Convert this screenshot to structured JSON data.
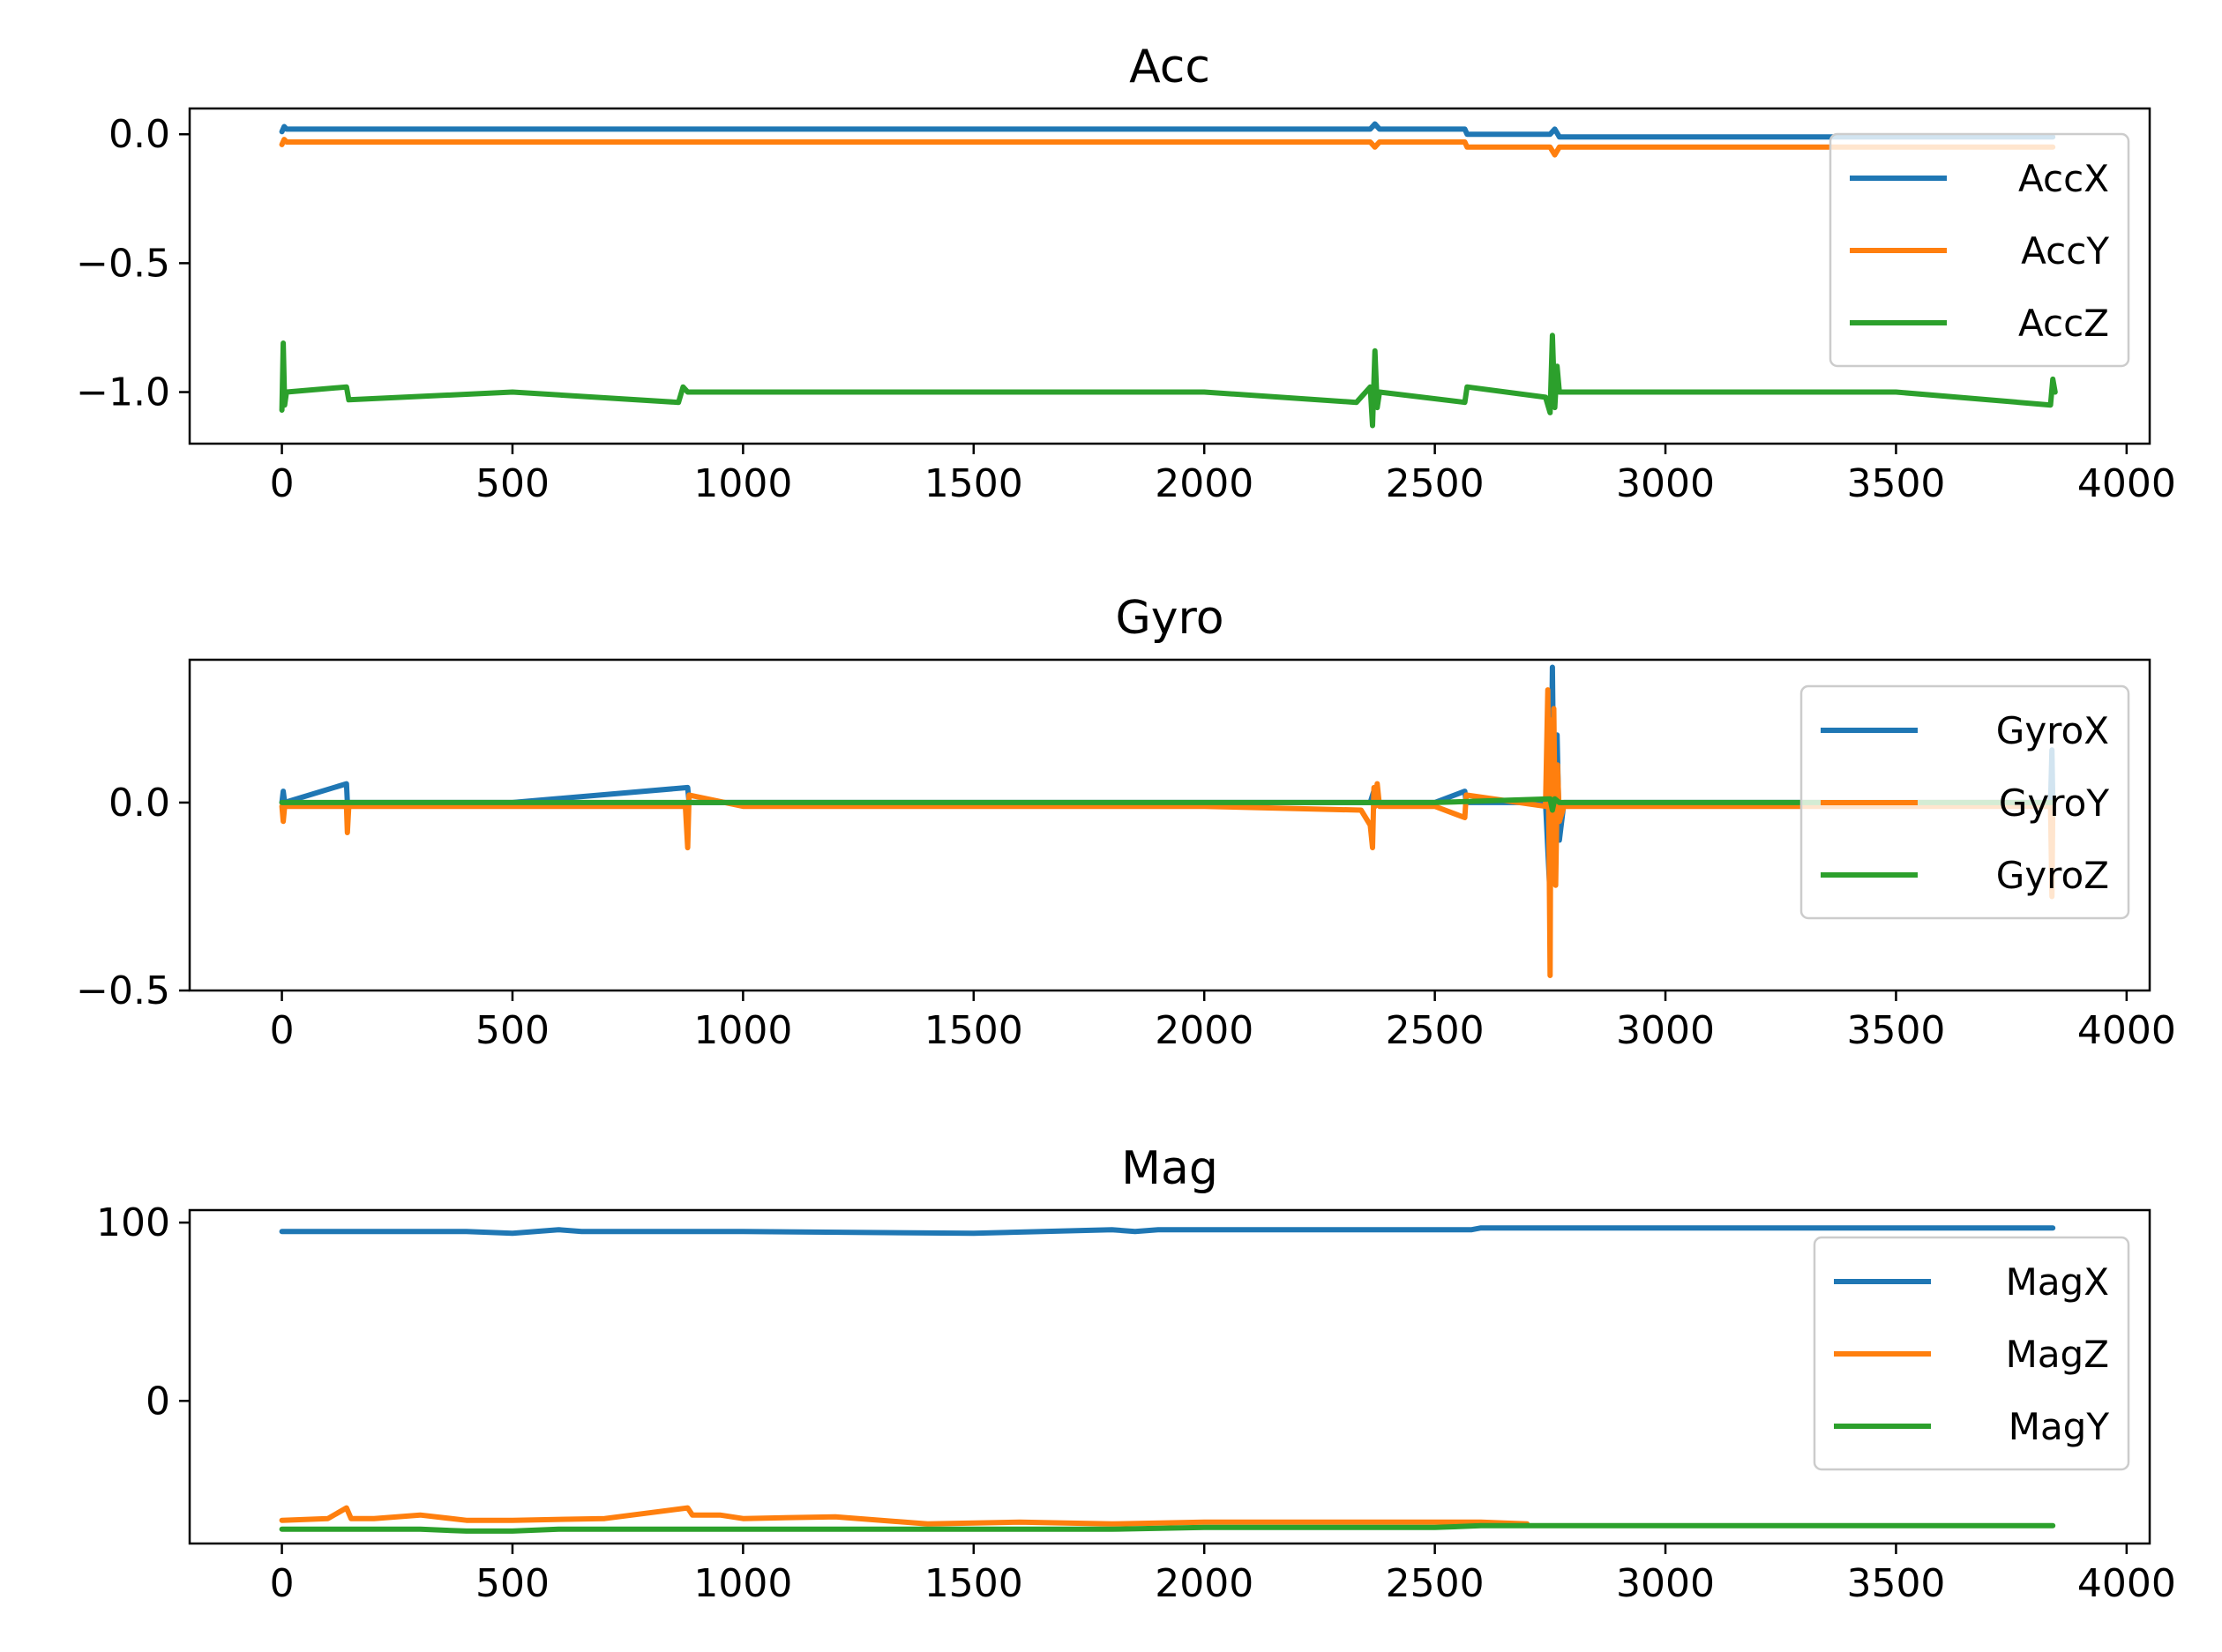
{
  "chart_data": [
    {
      "type": "line",
      "title": "Acc",
      "xlabel": "",
      "ylabel": "",
      "xlim": [
        -200,
        4050
      ],
      "ylim": [
        -1.2,
        0.1
      ],
      "xticks": [
        0,
        500,
        1000,
        1500,
        2000,
        2500,
        3000,
        3500,
        4000
      ],
      "xtick_labels": [
        "0",
        "500",
        "1000",
        "1500",
        "2000",
        "2500",
        "3000",
        "3500",
        "4000"
      ],
      "yticks": [
        0.0,
        -0.5,
        -1.0
      ],
      "ytick_labels": [
        "0.0",
        "−0.5",
        "−1.0"
      ],
      "grid": false,
      "legend": "top-right",
      "series": [
        {
          "name": "AccX",
          "color": "#1f77b4",
          "x": [
            0,
            5,
            10,
            140,
            500,
            860,
            880,
            1000,
            1500,
            2000,
            2360,
            2370,
            2380,
            2565,
            2570,
            2750,
            2760,
            2770,
            3000,
            3500,
            3840
          ],
          "y": [
            0.01,
            0.03,
            0.02,
            0.02,
            0.02,
            0.02,
            0.02,
            0.02,
            0.02,
            0.02,
            0.02,
            0.04,
            0.02,
            0.02,
            0.0,
            0.0,
            0.02,
            -0.01,
            -0.01,
            -0.01,
            -0.01
          ]
        },
        {
          "name": "AccY",
          "color": "#ff7f0e",
          "x": [
            0,
            5,
            10,
            500,
            880,
            1000,
            1500,
            2000,
            2360,
            2370,
            2380,
            2565,
            2570,
            2750,
            2760,
            2770,
            3000,
            3500,
            3840
          ],
          "y": [
            -0.04,
            -0.02,
            -0.03,
            -0.03,
            -0.03,
            -0.03,
            -0.03,
            -0.03,
            -0.03,
            -0.05,
            -0.03,
            -0.03,
            -0.05,
            -0.05,
            -0.08,
            -0.05,
            -0.05,
            -0.05,
            -0.05
          ]
        },
        {
          "name": "AccZ",
          "color": "#2ca02c",
          "x": [
            0,
            3,
            6,
            10,
            140,
            145,
            500,
            860,
            870,
            880,
            1000,
            1500,
            2000,
            2330,
            2360,
            2365,
            2370,
            2375,
            2380,
            2565,
            2570,
            2740,
            2750,
            2755,
            2760,
            2765,
            2770,
            3000,
            3500,
            3835,
            3840,
            3845
          ],
          "y": [
            -1.07,
            -0.81,
            -1.05,
            -1.0,
            -0.98,
            -1.03,
            -1.0,
            -1.04,
            -0.98,
            -1.0,
            -1.0,
            -1.0,
            -1.0,
            -1.04,
            -0.98,
            -1.13,
            -0.84,
            -1.06,
            -1.0,
            -1.04,
            -0.98,
            -1.02,
            -1.08,
            -0.78,
            -1.06,
            -0.9,
            -1.0,
            -1.0,
            -1.0,
            -1.05,
            -0.95,
            -1.0
          ]
        }
      ]
    },
    {
      "type": "line",
      "title": "Gyro",
      "xlabel": "",
      "ylabel": "",
      "xlim": [
        -200,
        4050
      ],
      "ylim": [
        -0.5,
        0.38
      ],
      "xticks": [
        0,
        500,
        1000,
        1500,
        2000,
        2500,
        3000,
        3500,
        4000
      ],
      "xtick_labels": [
        "0",
        "500",
        "1000",
        "1500",
        "2000",
        "2500",
        "3000",
        "3500",
        "4000"
      ],
      "yticks": [
        0.0,
        -0.5
      ],
      "ytick_labels": [
        "0.0",
        "−0.5"
      ],
      "grid": false,
      "legend": "top-right",
      "series": [
        {
          "name": "GyroX",
          "color": "#1f77b4",
          "x": [
            0,
            3,
            6,
            140,
            142,
            500,
            880,
            883,
            1000,
            1500,
            2000,
            2360,
            2370,
            2375,
            2500,
            2565,
            2568,
            2740,
            2750,
            2752,
            2755,
            2760,
            2765,
            2770,
            2780,
            3000,
            3500,
            3835,
            3838,
            3840
          ],
          "y": [
            0.0,
            0.03,
            0.0,
            0.05,
            0.0,
            0.0,
            0.04,
            0.0,
            0.0,
            0.0,
            0.0,
            0.0,
            0.04,
            0.0,
            0.0,
            0.03,
            0.0,
            0.0,
            -0.25,
            0.0,
            0.36,
            -0.2,
            0.18,
            -0.1,
            0.0,
            0.0,
            0.0,
            0.0,
            0.14,
            0.0
          ]
        },
        {
          "name": "GyroY",
          "color": "#ff7f0e",
          "x": [
            0,
            3,
            6,
            140,
            142,
            145,
            500,
            875,
            880,
            883,
            1000,
            1500,
            2000,
            2340,
            2360,
            2365,
            2368,
            2370,
            2375,
            2380,
            2500,
            2565,
            2568,
            2740,
            2745,
            2750,
            2752,
            2755,
            2758,
            2762,
            2766,
            2770,
            2780,
            3000,
            3500,
            3835,
            3838,
            3840
          ],
          "y": [
            -0.01,
            -0.05,
            -0.01,
            -0.01,
            -0.08,
            -0.01,
            -0.01,
            -0.01,
            -0.12,
            0.02,
            -0.01,
            -0.01,
            -0.01,
            -0.02,
            -0.06,
            -0.12,
            0.04,
            -0.01,
            0.05,
            -0.01,
            -0.01,
            -0.04,
            0.02,
            -0.01,
            0.3,
            -0.46,
            0.22,
            -0.2,
            0.25,
            -0.22,
            0.1,
            -0.05,
            -0.01,
            -0.01,
            -0.01,
            -0.01,
            -0.25,
            -0.01
          ]
        },
        {
          "name": "GyroZ",
          "color": "#2ca02c",
          "x": [
            0,
            500,
            1000,
            1500,
            2000,
            2500,
            2750,
            2755,
            2760,
            2770,
            3000,
            3500,
            3840
          ],
          "y": [
            0.0,
            0.0,
            0.0,
            0.0,
            0.0,
            0.0,
            0.01,
            -0.02,
            0.01,
            0.0,
            0.0,
            0.0,
            0.0
          ]
        }
      ]
    },
    {
      "type": "line",
      "title": "Mag",
      "xlabel": "",
      "ylabel": "",
      "xlim": [
        -200,
        4050
      ],
      "ylim": [
        -80,
        107
      ],
      "xticks": [
        0,
        500,
        1000,
        1500,
        2000,
        2500,
        3000,
        3500,
        4000
      ],
      "xtick_labels": [
        "0",
        "500",
        "1000",
        "1500",
        "2000",
        "2500",
        "3000",
        "3500",
        "4000"
      ],
      "yticks": [
        100,
        0
      ],
      "ytick_labels": [
        "100",
        "0"
      ],
      "grid": false,
      "legend": "top-right",
      "series": [
        {
          "name": "MagX",
          "color": "#1f77b4",
          "x": [
            0,
            200,
            400,
            500,
            600,
            650,
            880,
            1000,
            1500,
            1800,
            1850,
            1900,
            2000,
            2500,
            2580,
            2600,
            3000,
            3500,
            3840
          ],
          "y": [
            95,
            95,
            95,
            94,
            96,
            95,
            95,
            95,
            94,
            96,
            95,
            96,
            96,
            96,
            96,
            97,
            97,
            97,
            97
          ]
        },
        {
          "name": "MagZ",
          "color": "#ff7f0e",
          "x": [
            0,
            100,
            140,
            150,
            200,
            300,
            400,
            500,
            700,
            880,
            890,
            950,
            1000,
            1200,
            1400,
            1600,
            1800,
            2000,
            2300,
            2600,
            2700
          ],
          "y": [
            -67,
            -66,
            -60,
            -66,
            -66,
            -64,
            -67,
            -67,
            -66,
            -60,
            -64,
            -64,
            -66,
            -65,
            -69,
            -68,
            -69,
            -68,
            -68,
            -68,
            -69
          ]
        },
        {
          "name": "MagY",
          "color": "#2ca02c",
          "x": [
            0,
            300,
            400,
            500,
            600,
            700,
            1000,
            1300,
            1500,
            1800,
            2000,
            2500,
            2600,
            3000,
            3500,
            3840
          ],
          "y": [
            -72,
            -72,
            -73,
            -73,
            -72,
            -72,
            -72,
            -72,
            -72,
            -72,
            -71,
            -71,
            -70,
            -70,
            -70,
            -70
          ]
        }
      ]
    }
  ]
}
